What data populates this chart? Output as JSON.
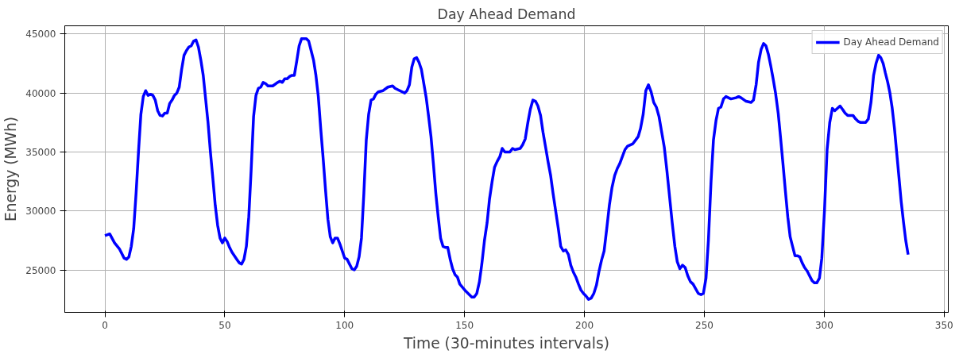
{
  "chart_data": {
    "type": "line",
    "title": "Day Ahead Demand",
    "xlabel": "Time (30-minutes intervals)",
    "ylabel": "Energy (MWh)",
    "xlim": [
      -16.75,
      351.75
    ],
    "ylim": [
      21400,
      45700
    ],
    "xticks": [
      0,
      50,
      100,
      150,
      200,
      250,
      300,
      350
    ],
    "yticks": [
      25000,
      30000,
      35000,
      40000,
      45000
    ],
    "grid": true,
    "legend": "top right",
    "line_style": "solid",
    "marker": "none",
    "series": [
      {
        "name": "Day Ahead Demand",
        "color": "#0000ff",
        "x": [
          0,
          2,
          4,
          6,
          8,
          9,
          10,
          11,
          12,
          13,
          14,
          15,
          16,
          17,
          18,
          19,
          20,
          21,
          22,
          23,
          24,
          25,
          26,
          27,
          28,
          29,
          30,
          31,
          32,
          33,
          34,
          35,
          36,
          37,
          38,
          39,
          40,
          41,
          42,
          43,
          44,
          45,
          46,
          47,
          48,
          49,
          50,
          51,
          52,
          53,
          55,
          56,
          57,
          58,
          59,
          60,
          61,
          62,
          63,
          64,
          65,
          66,
          67,
          68,
          70,
          72,
          73,
          74,
          75,
          76,
          77,
          78,
          79,
          80,
          81,
          82,
          83,
          84,
          85,
          86,
          87,
          88,
          89,
          90,
          91,
          92,
          93,
          94,
          95,
          96,
          97,
          98,
          99,
          100,
          101,
          102,
          103,
          104,
          105,
          106,
          107,
          108,
          109,
          110,
          111,
          112,
          113,
          114,
          116,
          118,
          120,
          121,
          123,
          125,
          126,
          127,
          128,
          129,
          130,
          131,
          132,
          133,
          134,
          135,
          136,
          137,
          138,
          139,
          140,
          141,
          142,
          143,
          144,
          145,
          146,
          147,
          148,
          150.5,
          152,
          153,
          154,
          155.1,
          156.2,
          157.2,
          158.3,
          159.4,
          160.4,
          161.5,
          162.5,
          163.6,
          164.7,
          165.7,
          166.8,
          168.9,
          170,
          171,
          173.2,
          174.2,
          175.3,
          176.4,
          177.4,
          178.5,
          179.6,
          180.6,
          181.7,
          182.7,
          183.8,
          184.8,
          185.9,
          186.9,
          188,
          189.1,
          190.1,
          191.2,
          192.2,
          193.3,
          194.3,
          195.4,
          196.4,
          197.5,
          198.5,
          199.6,
          200.6,
          201.7,
          202.8,
          203.9,
          205,
          206,
          207.1,
          208.2,
          209.3,
          210.4,
          211.5,
          212.6,
          213.7,
          214.7,
          215.8,
          216.9,
          218,
          220.2,
          221.3,
          222.4,
          223.4,
          224.5,
          225.6,
          226.7,
          227.8,
          228.9,
          230,
          231.1,
          232.2,
          233.3,
          234.4,
          235.5,
          236.6,
          237.7,
          238.7,
          239.8,
          240.9,
          242,
          243.1,
          244.2,
          245.3,
          246.4,
          247.5,
          248.6,
          249.6,
          250.7,
          251.7,
          252.8,
          253.8,
          254.9,
          255.9,
          256.9,
          258,
          259,
          261.1,
          263.2,
          264.3,
          265.3,
          267.4,
          269.5,
          270.5,
          271.6,
          272.6,
          273.7,
          274.7,
          275.7,
          276.7,
          277.7,
          278.7,
          279.7,
          280.8,
          281.8,
          282.8,
          283.8,
          284.8,
          285.8,
          286.8,
          287.8,
          288.8,
          289.8,
          290.8,
          291.8,
          292.9,
          293.9,
          294.9,
          295.9,
          296.9,
          298,
          299,
          300.1,
          301.2,
          302.3,
          303.4,
          304.4,
          305.5,
          306.6,
          307.7,
          308.7,
          309.8,
          312,
          313.1,
          314.1,
          315.2,
          317.3,
          318.4,
          319.5,
          320.6,
          321.6,
          322.7,
          323.6,
          324.6,
          325.5,
          326.5,
          327.4,
          328.3,
          329.3,
          330.2,
          331.2,
          332.1,
          333.1,
          334,
          335
        ],
        "values": [
          27900,
          28050,
          27300,
          26800,
          26000,
          25900,
          26100,
          27000,
          28500,
          31500,
          35000,
          38200,
          39700,
          40200,
          39800,
          39900,
          39800,
          39400,
          38500,
          38100,
          38050,
          38300,
          38300,
          39100,
          39400,
          39800,
          40000,
          40500,
          42000,
          43200,
          43600,
          43900,
          44000,
          44400,
          44500,
          43900,
          42800,
          41500,
          39500,
          37500,
          35000,
          32800,
          30500,
          28800,
          27700,
          27300,
          27700,
          27400,
          26900,
          26500,
          25900,
          25600,
          25500,
          25900,
          27000,
          29500,
          33500,
          38000,
          39800,
          40400,
          40500,
          40900,
          40800,
          40600,
          40600,
          40900,
          41000,
          40900,
          41200,
          41200,
          41400,
          41500,
          41500,
          42700,
          44000,
          44600,
          44600,
          44600,
          44400,
          43600,
          42800,
          41500,
          39700,
          37000,
          34500,
          31800,
          29300,
          27800,
          27300,
          27700,
          27700,
          27200,
          26600,
          26000,
          25900,
          25500,
          25100,
          25000,
          25300,
          26100,
          27700,
          31500,
          36000,
          38200,
          39400,
          39500,
          39900,
          40100,
          40200,
          40500,
          40600,
          40400,
          40200,
          40000,
          40200,
          40700,
          42200,
          42900,
          43000,
          42600,
          42000,
          40800,
          39600,
          38000,
          36300,
          34000,
          31500,
          29500,
          27700,
          27000,
          26900,
          26900,
          25900,
          25100,
          24600,
          24400,
          23800,
          23200,
          22900,
          22700,
          22700,
          23000,
          24000,
          25500,
          27500,
          29000,
          31000,
          32500,
          33700,
          34200,
          34600,
          35300,
          35000,
          35000,
          35300,
          35200,
          35300,
          35600,
          36100,
          37500,
          38600,
          39400,
          39300,
          38900,
          38100,
          36700,
          35400,
          34200,
          33000,
          31500,
          30000,
          28500,
          27000,
          26600,
          26700,
          26300,
          25400,
          24800,
          24400,
          23800,
          23300,
          23000,
          22800,
          22500,
          22600,
          23000,
          23700,
          24800,
          25800,
          26600,
          28500,
          30500,
          32000,
          33000,
          33600,
          34000,
          34600,
          35200,
          35500,
          35700,
          36000,
          36300,
          37000,
          38200,
          40200,
          40700,
          40100,
          39200,
          38800,
          38000,
          36700,
          35400,
          33400,
          31200,
          29000,
          27000,
          25700,
          25100,
          25400,
          25200,
          24500,
          24000,
          23800,
          23400,
          23000,
          22900,
          23000,
          24300,
          27500,
          32500,
          36000,
          37700,
          38700,
          38800,
          39500,
          39700,
          39500,
          39600,
          39700,
          39600,
          39300,
          39200,
          39400,
          40700,
          42600,
          43700,
          44200,
          44000,
          43300,
          42300,
          41200,
          40000,
          38300,
          36200,
          34000,
          31700,
          29500,
          27800,
          27000,
          26200,
          26200,
          26100,
          25600,
          25200,
          24900,
          24500,
          24100,
          23900,
          23900,
          24300,
          26000,
          30000,
          35200,
          37500,
          38700,
          38500,
          38700,
          38900,
          38600,
          38300,
          38100,
          38100,
          37800,
          37600,
          37500,
          37500,
          37800,
          39200,
          41500,
          42500,
          43200,
          43000,
          42500,
          41700,
          40900,
          40000,
          38800,
          37000,
          35000,
          32800,
          30800,
          29000,
          27500,
          26300
        ]
      }
    ]
  }
}
